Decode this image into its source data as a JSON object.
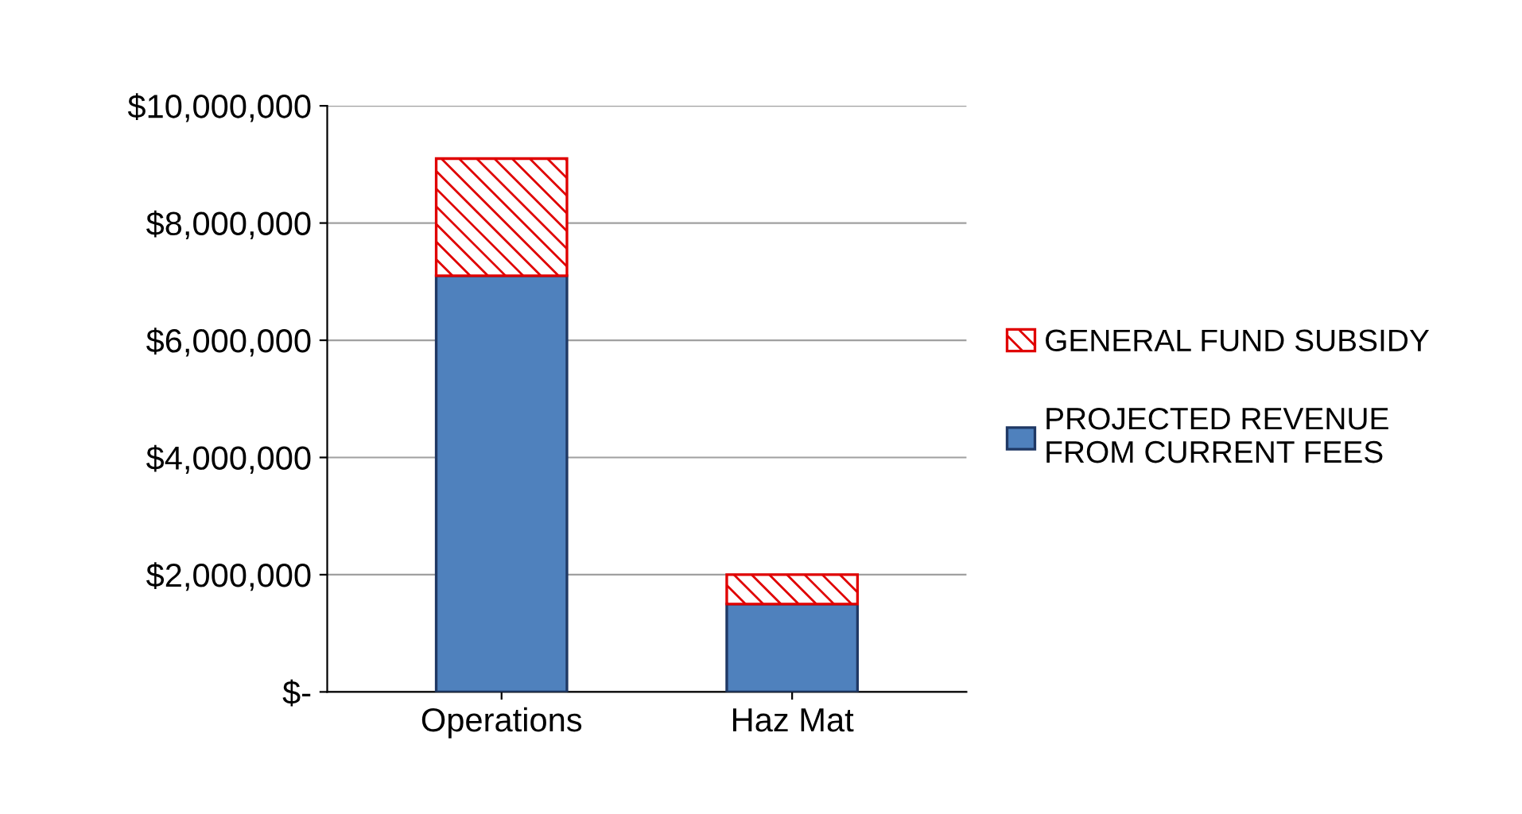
{
  "chart_data": {
    "type": "bar",
    "stacked": true,
    "categories": [
      "Operations",
      "Haz Mat"
    ],
    "series": [
      {
        "name": "PROJECTED REVENUE\nFROM CURRENT FEES",
        "color": "#4f81bd",
        "values": [
          7100000,
          1500000
        ]
      },
      {
        "name": "GENERAL FUND SUBSIDY",
        "color": "#e00000",
        "values": [
          2000000,
          500000
        ]
      }
    ],
    "ylim": [
      0,
      10000000
    ],
    "yticks": [
      {
        "value": 0,
        "label": "$-"
      },
      {
        "value": 2000000,
        "label": "$2,000,000"
      },
      {
        "value": 4000000,
        "label": "$4,000,000"
      },
      {
        "value": 6000000,
        "label": "$6,000,000"
      },
      {
        "value": 8000000,
        "label": "$8,000,000"
      },
      {
        "value": 10000000,
        "label": "$10,000,000"
      }
    ],
    "grid": "y",
    "legend": "right"
  }
}
